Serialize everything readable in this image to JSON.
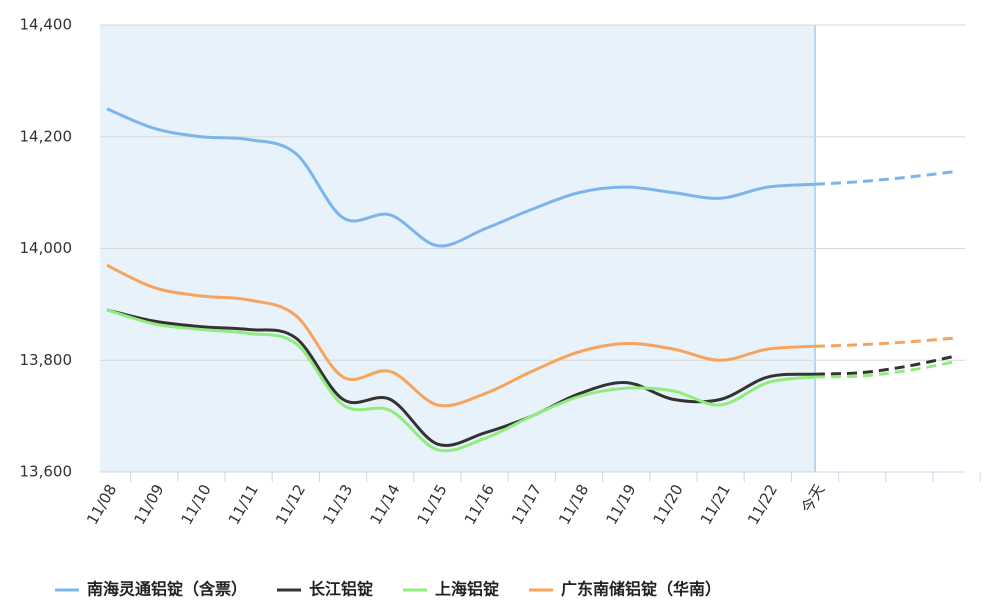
{
  "chart_data": {
    "type": "line",
    "categories": [
      "11/08",
      "11/09",
      "11/10",
      "11/11",
      "11/12",
      "11/13",
      "11/14",
      "11/15",
      "11/16",
      "11/17",
      "11/18",
      "11/19",
      "11/20",
      "11/21",
      "11/22",
      "今天",
      null,
      null,
      null
    ],
    "series": [
      {
        "name": "南海灵通铝锭（含票）",
        "color": "#7cb5ec",
        "values": [
          14250,
          14215,
          14200,
          14195,
          14170,
          14055,
          14060,
          14005,
          14035,
          14070,
          14100,
          14110,
          14100,
          14090,
          14110,
          14115,
          14120,
          14128,
          14138
        ]
      },
      {
        "name": "长江铝锭",
        "color": "#333333",
        "values": [
          13890,
          13870,
          13860,
          13855,
          13840,
          13730,
          13730,
          13650,
          13670,
          13700,
          13740,
          13760,
          13730,
          13730,
          13770,
          13775,
          13778,
          13790,
          13808
        ]
      },
      {
        "name": "上海铝锭",
        "color": "#90ed7d",
        "values": [
          13890,
          13865,
          13855,
          13848,
          13830,
          13720,
          13710,
          13640,
          13660,
          13700,
          13735,
          13750,
          13745,
          13720,
          13760,
          13770,
          13772,
          13782,
          13798
        ]
      },
      {
        "name": "广东南储铝锭（华南）",
        "color": "#f7a35c",
        "values": [
          13970,
          13930,
          13915,
          13908,
          13880,
          13770,
          13780,
          13720,
          13740,
          13780,
          13815,
          13830,
          13820,
          13800,
          13820,
          13825,
          13828,
          13833,
          13840
        ]
      }
    ],
    "ylim": [
      13600,
      14400
    ],
    "yticks": [
      {
        "value": 13600,
        "label": "13,600"
      },
      {
        "value": 13800,
        "label": "13,800"
      },
      {
        "value": 14000,
        "label": "14,000"
      },
      {
        "value": 14200,
        "label": "14,200"
      },
      {
        "value": 14400,
        "label": "14,400"
      }
    ],
    "grid": true
  }
}
